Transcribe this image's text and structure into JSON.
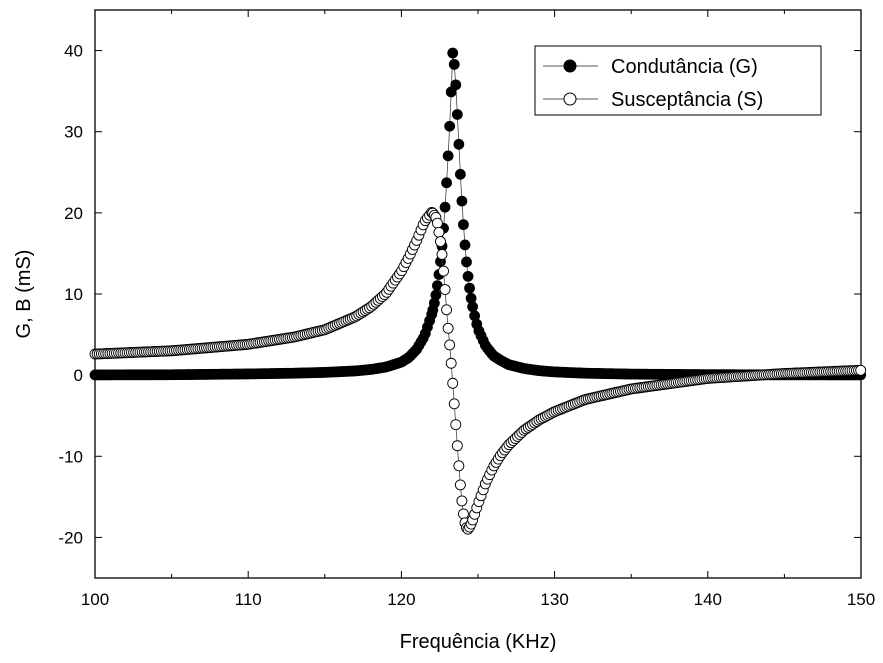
{
  "chart_data": {
    "type": "scatter",
    "title": "",
    "xlabel": "Frequência (KHz)",
    "ylabel": "G, B (mS)",
    "xlim": [
      100,
      150
    ],
    "ylim": [
      -25,
      45
    ],
    "x_ticks": [
      100,
      110,
      120,
      130,
      140,
      150
    ],
    "y_ticks": [
      -20,
      -10,
      0,
      10,
      20,
      30,
      40
    ],
    "grid": false,
    "legend_position": "top-right",
    "resonance": {
      "f0": 123.35,
      "gamma": 0.62,
      "peak": 39.7
    },
    "series": [
      {
        "name": "Condutância (G)",
        "marker": "filled-circle",
        "color": "#000000",
        "x": [
          100,
          105,
          110,
          113,
          115,
          117,
          118,
          119,
          120,
          120.5,
          121,
          121.5,
          122,
          122.2,
          122.4,
          122.6,
          122.8,
          123,
          123.2,
          123.35,
          123.5,
          123.7,
          123.9,
          124.1,
          124.3,
          124.5,
          124.7,
          125,
          125.5,
          126,
          126.5,
          127,
          128,
          129,
          130,
          132,
          135,
          140,
          145,
          150
        ],
        "values": [
          0.03,
          0.05,
          0.15,
          0.24,
          0.34,
          0.52,
          0.7,
          1.0,
          1.6,
          2.2,
          3.2,
          4.8,
          7.6,
          9.3,
          11.6,
          14.8,
          19.2,
          25.2,
          32.5,
          39.7,
          37.6,
          30.3,
          22.9,
          17.1,
          12.9,
          10.0,
          7.9,
          5.7,
          3.6,
          2.4,
          1.8,
          1.3,
          0.82,
          0.55,
          0.4,
          0.24,
          0.13,
          0.06,
          0.04,
          0.03
        ]
      },
      {
        "name": "Susceptância (S)",
        "marker": "open-circle",
        "color": "#000000",
        "x": [
          100,
          105,
          110,
          113,
          115,
          117,
          118,
          119,
          120,
          120.5,
          121,
          121.5,
          122,
          122.3,
          122.6,
          122.8,
          123,
          123.2,
          123.35,
          123.5,
          123.7,
          123.9,
          124.1,
          124.3,
          124.5,
          124.7,
          125,
          125.5,
          126,
          126.5,
          127,
          128,
          129,
          130,
          132,
          135,
          140,
          145,
          150
        ],
        "values": [
          2.6,
          3.0,
          3.8,
          4.7,
          5.6,
          7.2,
          8.4,
          10.1,
          12.8,
          14.6,
          16.6,
          18.9,
          20.1,
          19.3,
          15.9,
          11.8,
          6.8,
          2.7,
          -1.0,
          -4.8,
          -10.0,
          -14.7,
          -17.9,
          -19.1,
          -18.6,
          -17.6,
          -15.9,
          -13.3,
          -11.3,
          -9.8,
          -8.6,
          -6.8,
          -5.5,
          -4.5,
          -3.0,
          -1.7,
          -0.4,
          0.2,
          0.6
        ]
      }
    ]
  }
}
